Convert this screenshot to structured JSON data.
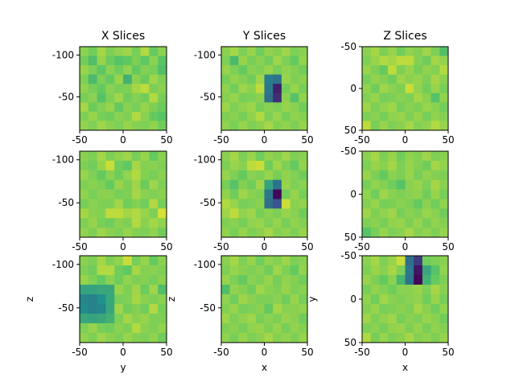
{
  "figure": {
    "colormap": "viridis",
    "colors": [
      "#440154",
      "#3b528b",
      "#21918c",
      "#5ec962",
      "#fde725"
    ]
  },
  "chart_data": [
    {
      "type": "heatmap",
      "panel": "x-slice-1",
      "title": "X Slices",
      "xlabel": "",
      "ylabel": "",
      "xlim": [
        -50,
        50
      ],
      "ylim": [
        -110,
        -10
      ],
      "yinvert": true,
      "xticks": [
        "-50",
        "0",
        "50"
      ],
      "yticks": [
        "-50",
        "-100"
      ],
      "z": [
        [
          0.82,
          0.78,
          0.86,
          0.8,
          0.83,
          0.85,
          0.79,
          0.88,
          0.76,
          0.82
        ],
        [
          0.78,
          0.7,
          0.84,
          0.77,
          0.72,
          0.75,
          0.8,
          0.74,
          0.82,
          0.73
        ],
        [
          0.84,
          0.8,
          0.74,
          0.82,
          0.78,
          0.83,
          0.76,
          0.81,
          0.79,
          0.7
        ],
        [
          0.8,
          0.68,
          0.8,
          0.76,
          0.84,
          0.64,
          0.82,
          0.77,
          0.85,
          0.8
        ],
        [
          0.83,
          0.79,
          0.76,
          0.82,
          0.79,
          0.8,
          0.86,
          0.9,
          0.8,
          0.82
        ],
        [
          0.79,
          0.82,
          0.72,
          0.8,
          0.85,
          0.78,
          0.81,
          0.78,
          0.88,
          0.79
        ],
        [
          0.86,
          0.77,
          0.81,
          0.84,
          0.76,
          0.82,
          0.79,
          0.84,
          0.8,
          0.77
        ],
        [
          0.8,
          0.84,
          0.79,
          0.78,
          0.82,
          0.8,
          0.88,
          0.82,
          0.76,
          0.73
        ],
        [
          0.83,
          0.8,
          0.85,
          0.82,
          0.8,
          0.84,
          0.81,
          0.8,
          0.83,
          0.78
        ]
      ]
    },
    {
      "type": "heatmap",
      "panel": "y-slice-1",
      "title": "Y Slices",
      "xlabel": "",
      "ylabel": "",
      "xlim": [
        -50,
        50
      ],
      "ylim": [
        -110,
        -10
      ],
      "yinvert": true,
      "xticks": [
        "-50",
        "0",
        "50"
      ],
      "yticks": [
        "-50",
        "-100"
      ],
      "z": [
        [
          0.82,
          0.86,
          0.8,
          0.84,
          0.78,
          0.83,
          0.81,
          0.85,
          0.8,
          0.82
        ],
        [
          0.8,
          0.68,
          0.84,
          0.79,
          0.82,
          0.78,
          0.85,
          0.8,
          0.76,
          0.83
        ],
        [
          0.84,
          0.8,
          0.76,
          0.82,
          0.8,
          0.84,
          0.79,
          0.83,
          0.81,
          0.78
        ],
        [
          0.79,
          0.83,
          0.81,
          0.78,
          0.85,
          0.42,
          0.38,
          0.84,
          0.8,
          0.82
        ],
        [
          0.83,
          0.78,
          0.85,
          0.82,
          0.9,
          0.4,
          0.1,
          0.78,
          0.84,
          0.79
        ],
        [
          0.81,
          0.84,
          0.79,
          0.8,
          0.82,
          0.36,
          0.14,
          0.82,
          0.72,
          0.83
        ],
        [
          0.85,
          0.8,
          0.83,
          0.85,
          0.79,
          0.82,
          0.8,
          0.84,
          0.82,
          0.78
        ],
        [
          0.8,
          0.82,
          0.79,
          0.83,
          0.88,
          0.8,
          0.84,
          0.79,
          0.83,
          0.81
        ],
        [
          0.83,
          0.79,
          0.84,
          0.8,
          0.82,
          0.86,
          0.81,
          0.83,
          0.8,
          0.84
        ]
      ]
    },
    {
      "type": "heatmap",
      "panel": "z-slice-1",
      "title": "Z Slices",
      "xlabel": "",
      "ylabel": "",
      "xlim": [
        -50,
        50
      ],
      "ylim": [
        -50,
        50
      ],
      "yinvert": true,
      "xticks": [
        "-50",
        "0",
        "50"
      ],
      "yticks": [
        "-50",
        "0",
        "50"
      ],
      "z": [
        [
          0.82,
          0.86,
          0.8,
          0.84,
          0.78,
          0.83,
          0.81,
          0.85,
          0.8,
          0.7
        ],
        [
          0.8,
          0.84,
          0.88,
          0.86,
          0.9,
          0.9,
          0.81,
          0.78,
          0.86,
          0.83
        ],
        [
          0.84,
          0.8,
          0.76,
          0.9,
          0.8,
          0.84,
          0.79,
          0.83,
          0.81,
          0.88
        ],
        [
          0.79,
          0.83,
          0.81,
          0.78,
          0.85,
          0.82,
          0.84,
          0.8,
          0.86,
          0.82
        ],
        [
          0.83,
          0.78,
          0.85,
          0.82,
          0.8,
          0.92,
          0.83,
          0.78,
          0.84,
          0.79
        ],
        [
          0.81,
          0.84,
          0.79,
          0.8,
          0.82,
          0.8,
          0.86,
          0.82,
          0.72,
          0.83
        ],
        [
          0.85,
          0.8,
          0.83,
          0.85,
          0.79,
          0.82,
          0.8,
          0.84,
          0.82,
          0.78
        ],
        [
          0.8,
          0.82,
          0.79,
          0.83,
          0.84,
          0.8,
          0.84,
          0.79,
          0.83,
          0.81
        ],
        [
          0.9,
          0.79,
          0.84,
          0.8,
          0.82,
          0.86,
          0.81,
          0.83,
          0.88,
          0.84
        ]
      ]
    },
    {
      "type": "heatmap",
      "panel": "x-slice-2",
      "title": "",
      "xlabel": "",
      "ylabel": "",
      "xlim": [
        -50,
        50
      ],
      "ylim": [
        -110,
        -10
      ],
      "yinvert": true,
      "xticks": [
        "-50",
        "0",
        "50"
      ],
      "yticks": [
        "-50",
        "-100"
      ],
      "z": [
        [
          0.82,
          0.8,
          0.86,
          0.8,
          0.83,
          0.85,
          0.79,
          0.84,
          0.76,
          0.82
        ],
        [
          0.8,
          0.78,
          0.84,
          0.92,
          0.78,
          0.75,
          0.86,
          0.81,
          0.82,
          0.8
        ],
        [
          0.84,
          0.8,
          0.76,
          0.82,
          0.78,
          0.83,
          0.88,
          0.81,
          0.79,
          0.82
        ],
        [
          0.8,
          0.82,
          0.8,
          0.76,
          0.84,
          0.8,
          0.85,
          0.77,
          0.85,
          0.8
        ],
        [
          0.83,
          0.79,
          0.82,
          0.82,
          0.79,
          0.8,
          0.86,
          0.82,
          0.8,
          0.82
        ],
        [
          0.79,
          0.82,
          0.8,
          0.8,
          0.85,
          0.78,
          0.81,
          0.78,
          0.88,
          0.79
        ],
        [
          0.86,
          0.82,
          0.81,
          0.9,
          0.9,
          0.86,
          0.88,
          0.84,
          0.8,
          0.94
        ],
        [
          0.8,
          0.84,
          0.79,
          0.78,
          0.82,
          0.8,
          0.88,
          0.82,
          0.86,
          0.83
        ],
        [
          0.83,
          0.8,
          0.85,
          0.82,
          0.8,
          0.84,
          0.81,
          0.8,
          0.83,
          0.78
        ]
      ]
    },
    {
      "type": "heatmap",
      "panel": "y-slice-2",
      "title": "",
      "xlabel": "",
      "ylabel": "",
      "xlim": [
        -50,
        50
      ],
      "ylim": [
        -110,
        -10
      ],
      "yinvert": true,
      "xticks": [
        "-50",
        "0",
        "50"
      ],
      "yticks": [
        "-50",
        "-100"
      ],
      "z": [
        [
          0.82,
          0.86,
          0.8,
          0.84,
          0.78,
          0.83,
          0.81,
          0.85,
          0.8,
          0.82
        ],
        [
          0.8,
          0.84,
          0.82,
          0.9,
          0.92,
          0.78,
          0.85,
          0.8,
          0.76,
          0.83
        ],
        [
          0.84,
          0.8,
          0.76,
          0.82,
          0.8,
          0.84,
          0.79,
          0.83,
          0.81,
          0.78
        ],
        [
          0.79,
          0.72,
          0.81,
          0.78,
          0.85,
          0.58,
          0.38,
          0.84,
          0.8,
          0.82
        ],
        [
          0.83,
          0.78,
          0.85,
          0.82,
          0.8,
          0.4,
          0.02,
          0.78,
          0.84,
          0.79
        ],
        [
          0.88,
          0.84,
          0.79,
          0.8,
          0.82,
          0.36,
          0.26,
          0.92,
          0.82,
          0.83
        ],
        [
          0.85,
          0.9,
          0.83,
          0.85,
          0.79,
          0.82,
          0.8,
          0.84,
          0.82,
          0.78
        ],
        [
          0.8,
          0.82,
          0.79,
          0.83,
          0.84,
          0.8,
          0.84,
          0.79,
          0.83,
          0.81
        ],
        [
          0.83,
          0.79,
          0.84,
          0.8,
          0.82,
          0.86,
          0.81,
          0.83,
          0.8,
          0.84
        ]
      ]
    },
    {
      "type": "heatmap",
      "panel": "z-slice-2",
      "title": "",
      "xlabel": "",
      "ylabel": "",
      "xlim": [
        -50,
        50
      ],
      "ylim": [
        -50,
        50
      ],
      "yinvert": true,
      "xticks": [
        "-50",
        "0",
        "50"
      ],
      "yticks": [
        "-50",
        "0",
        "50"
      ],
      "z": [
        [
          0.82,
          0.86,
          0.8,
          0.84,
          0.78,
          0.83,
          0.81,
          0.85,
          0.8,
          0.82
        ],
        [
          0.8,
          0.84,
          0.82,
          0.86,
          0.8,
          0.84,
          0.81,
          0.78,
          0.86,
          0.83
        ],
        [
          0.84,
          0.8,
          0.76,
          0.82,
          0.8,
          0.84,
          0.79,
          0.83,
          0.81,
          0.8
        ],
        [
          0.79,
          0.83,
          0.81,
          0.78,
          0.72,
          0.82,
          0.84,
          0.8,
          0.86,
          0.82
        ],
        [
          0.83,
          0.78,
          0.85,
          0.82,
          0.8,
          0.82,
          0.83,
          0.78,
          0.84,
          0.79
        ],
        [
          0.81,
          0.84,
          0.79,
          0.8,
          0.82,
          0.8,
          0.76,
          0.82,
          0.78,
          0.83
        ],
        [
          0.85,
          0.8,
          0.83,
          0.85,
          0.79,
          0.82,
          0.8,
          0.84,
          0.82,
          0.78
        ],
        [
          0.8,
          0.82,
          0.79,
          0.83,
          0.84,
          0.8,
          0.84,
          0.79,
          0.83,
          0.81
        ],
        [
          0.72,
          0.79,
          0.84,
          0.8,
          0.82,
          0.86,
          0.81,
          0.83,
          0.8,
          0.84
        ]
      ]
    },
    {
      "type": "heatmap",
      "panel": "x-slice-3",
      "title": "",
      "xlabel": "y",
      "ylabel": "z",
      "xlim": [
        -50,
        50
      ],
      "ylim": [
        -110,
        -10
      ],
      "yinvert": true,
      "xticks": [
        "-50",
        "0",
        "50"
      ],
      "yticks": [
        "-50",
        "-100"
      ],
      "z": [
        [
          0.82,
          0.8,
          0.86,
          0.8,
          0.83,
          0.92,
          0.79,
          0.84,
          0.76,
          0.82
        ],
        [
          0.8,
          0.78,
          0.88,
          0.88,
          0.78,
          0.75,
          0.86,
          0.81,
          0.82,
          0.8
        ],
        [
          0.84,
          0.8,
          0.76,
          0.82,
          0.78,
          0.83,
          0.8,
          0.81,
          0.79,
          0.82
        ],
        [
          0.58,
          0.58,
          0.6,
          0.6,
          0.84,
          0.8,
          0.85,
          0.77,
          0.85,
          0.7
        ],
        [
          0.46,
          0.44,
          0.5,
          0.6,
          0.79,
          0.8,
          0.86,
          0.82,
          0.8,
          0.82
        ],
        [
          0.48,
          0.44,
          0.46,
          0.6,
          0.85,
          0.78,
          0.81,
          0.78,
          0.88,
          0.79
        ],
        [
          0.6,
          0.58,
          0.6,
          0.64,
          0.8,
          0.86,
          0.82,
          0.84,
          0.8,
          0.8
        ],
        [
          0.8,
          0.84,
          0.79,
          0.78,
          0.82,
          0.8,
          0.88,
          0.82,
          0.8,
          0.83
        ],
        [
          0.83,
          0.8,
          0.85,
          0.82,
          0.8,
          0.84,
          0.81,
          0.8,
          0.83,
          0.78
        ]
      ]
    },
    {
      "type": "heatmap",
      "panel": "y-slice-3",
      "title": "",
      "xlabel": "x",
      "ylabel": "z",
      "xlim": [
        -50,
        50
      ],
      "ylim": [
        -110,
        -10
      ],
      "yinvert": true,
      "xticks": [
        "-50",
        "0",
        "50"
      ],
      "yticks": [
        "-50",
        "-100"
      ],
      "z": [
        [
          0.82,
          0.86,
          0.8,
          0.84,
          0.78,
          0.83,
          0.81,
          0.85,
          0.8,
          0.82
        ],
        [
          0.8,
          0.84,
          0.82,
          0.8,
          0.82,
          0.78,
          0.85,
          0.8,
          0.76,
          0.83
        ],
        [
          0.84,
          0.8,
          0.76,
          0.82,
          0.8,
          0.84,
          0.79,
          0.83,
          0.81,
          0.78
        ],
        [
          0.7,
          0.83,
          0.81,
          0.78,
          0.85,
          0.82,
          0.8,
          0.84,
          0.8,
          0.82
        ],
        [
          0.83,
          0.78,
          0.85,
          0.82,
          0.8,
          0.8,
          0.82,
          0.78,
          0.84,
          0.79
        ],
        [
          0.81,
          0.84,
          0.79,
          0.8,
          0.82,
          0.76,
          0.86,
          0.82,
          0.82,
          0.83
        ],
        [
          0.85,
          0.8,
          0.83,
          0.85,
          0.79,
          0.82,
          0.8,
          0.84,
          0.82,
          0.78
        ],
        [
          0.8,
          0.82,
          0.79,
          0.83,
          0.84,
          0.8,
          0.84,
          0.79,
          0.83,
          0.81
        ],
        [
          0.83,
          0.79,
          0.84,
          0.8,
          0.82,
          0.86,
          0.81,
          0.83,
          0.8,
          0.84
        ]
      ]
    },
    {
      "type": "heatmap",
      "panel": "z-slice-3",
      "title": "",
      "xlabel": "x",
      "ylabel": "y",
      "xlim": [
        -50,
        50
      ],
      "ylim": [
        -50,
        50
      ],
      "yinvert": true,
      "xticks": [
        "-50",
        "0",
        "50"
      ],
      "yticks": [
        "-50",
        "0",
        "50"
      ],
      "z": [
        [
          0.82,
          0.86,
          0.8,
          0.84,
          0.92,
          0.36,
          0.18,
          0.78,
          0.8,
          0.82
        ],
        [
          0.8,
          0.84,
          0.82,
          0.86,
          0.8,
          0.4,
          0.06,
          0.6,
          0.72,
          0.83
        ],
        [
          0.84,
          0.8,
          0.76,
          0.82,
          0.66,
          0.38,
          0.02,
          0.64,
          0.76,
          0.8
        ],
        [
          0.79,
          0.83,
          0.81,
          0.78,
          0.82,
          0.82,
          0.84,
          0.8,
          0.86,
          0.82
        ],
        [
          0.83,
          0.78,
          0.85,
          0.82,
          0.8,
          0.82,
          0.83,
          0.78,
          0.84,
          0.79
        ],
        [
          0.81,
          0.84,
          0.79,
          0.8,
          0.82,
          0.8,
          0.86,
          0.82,
          0.78,
          0.83
        ],
        [
          0.85,
          0.8,
          0.83,
          0.85,
          0.79,
          0.82,
          0.8,
          0.84,
          0.82,
          0.78
        ],
        [
          0.8,
          0.82,
          0.79,
          0.83,
          0.84,
          0.8,
          0.84,
          0.79,
          0.83,
          0.81
        ],
        [
          0.88,
          0.79,
          0.84,
          0.8,
          0.82,
          0.86,
          0.81,
          0.83,
          0.8,
          0.84
        ]
      ]
    }
  ]
}
